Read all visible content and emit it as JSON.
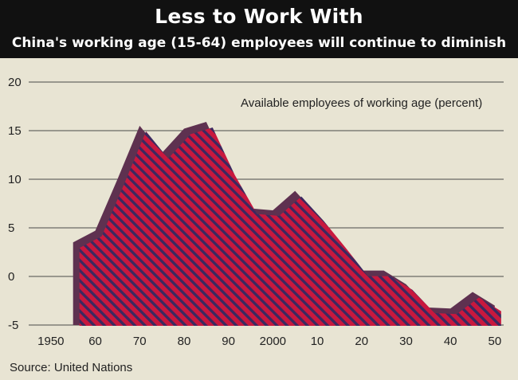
{
  "header": {
    "title": "Less to Work With",
    "subtitle": "China's working age (15-64) employees will continue to diminish"
  },
  "source": "Source: United Nations",
  "colors": {
    "background": "#e8e4d3",
    "header_background": "#111111",
    "fill_red": "#c8183e",
    "stripe_dark": "#3b2960",
    "shadow": "#5e3150",
    "grid": "#4a4a4a"
  },
  "chart_data": {
    "type": "area",
    "annotation": "Available employees of working age (percent)",
    "xlabel": "",
    "ylabel": "",
    "xlim": [
      1945,
      2052
    ],
    "ylim": [
      -5,
      20
    ],
    "x_ticks": [
      {
        "value": 1950,
        "label": "1950"
      },
      {
        "value": 1960,
        "label": "60"
      },
      {
        "value": 1970,
        "label": "70"
      },
      {
        "value": 1980,
        "label": "80"
      },
      {
        "value": 1990,
        "label": "90"
      },
      {
        "value": 2000,
        "label": "2000"
      },
      {
        "value": 2010,
        "label": "10"
      },
      {
        "value": 2020,
        "label": "20"
      },
      {
        "value": 2030,
        "label": "30"
      },
      {
        "value": 2040,
        "label": "40"
      },
      {
        "value": 2050,
        "label": "50"
      }
    ],
    "y_ticks": [
      {
        "value": 20,
        "label": "20"
      },
      {
        "value": 15,
        "label": "15"
      },
      {
        "value": 10,
        "label": "10"
      },
      {
        "value": 5,
        "label": "5"
      },
      {
        "value": 0,
        "label": "0"
      },
      {
        "value": -5,
        "label": "-5"
      }
    ],
    "grid": true,
    "series": [
      {
        "x": [
          1955,
          1960,
          1965,
          1970,
          1975,
          1980,
          1985,
          1990,
          1995,
          2000,
          2005,
          2010,
          2015,
          2020,
          2025,
          2030,
          2035,
          2040,
          2045,
          2050
        ],
        "values": [
          3.5,
          4.7,
          10,
          15.5,
          12.7,
          15.2,
          15.9,
          11,
          7,
          6.8,
          8.8,
          6.3,
          3.5,
          0.6,
          0.6,
          -0.8,
          -3.2,
          -3.3,
          -1.6,
          -3
        ]
      }
    ]
  }
}
